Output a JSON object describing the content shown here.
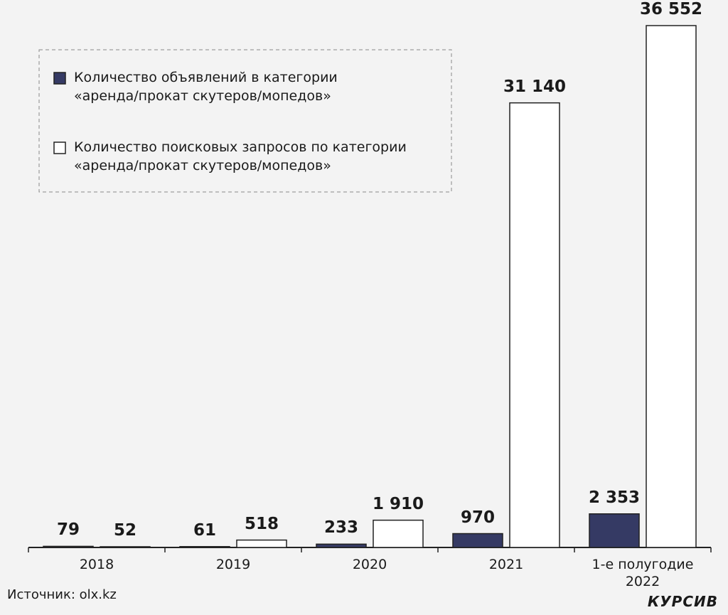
{
  "chart_data": {
    "type": "bar",
    "categories": [
      "2018",
      "2019",
      "2020",
      "2021",
      "1-е полугодие\n2022"
    ],
    "series": [
      {
        "name": "Количество объявлений в категории\n«аренда/прокат скутеров/мопедов»",
        "color": "#353a64",
        "values": [
          79,
          61,
          233,
          970,
          2353
        ],
        "value_labels": [
          "79",
          "61",
          "233",
          "970",
          "2 353"
        ]
      },
      {
        "name": "Количество поисковых запросов по категории\n«аренда/прокат скутеров/мопедов»",
        "color": "#ffffff",
        "values": [
          52,
          518,
          1910,
          31140,
          36552
        ],
        "value_labels": [
          "52",
          "518",
          "1 910",
          "31 140",
          "36 552"
        ]
      }
    ],
    "source": "Источник: olx.kz",
    "brand": "КУРСИВ"
  }
}
